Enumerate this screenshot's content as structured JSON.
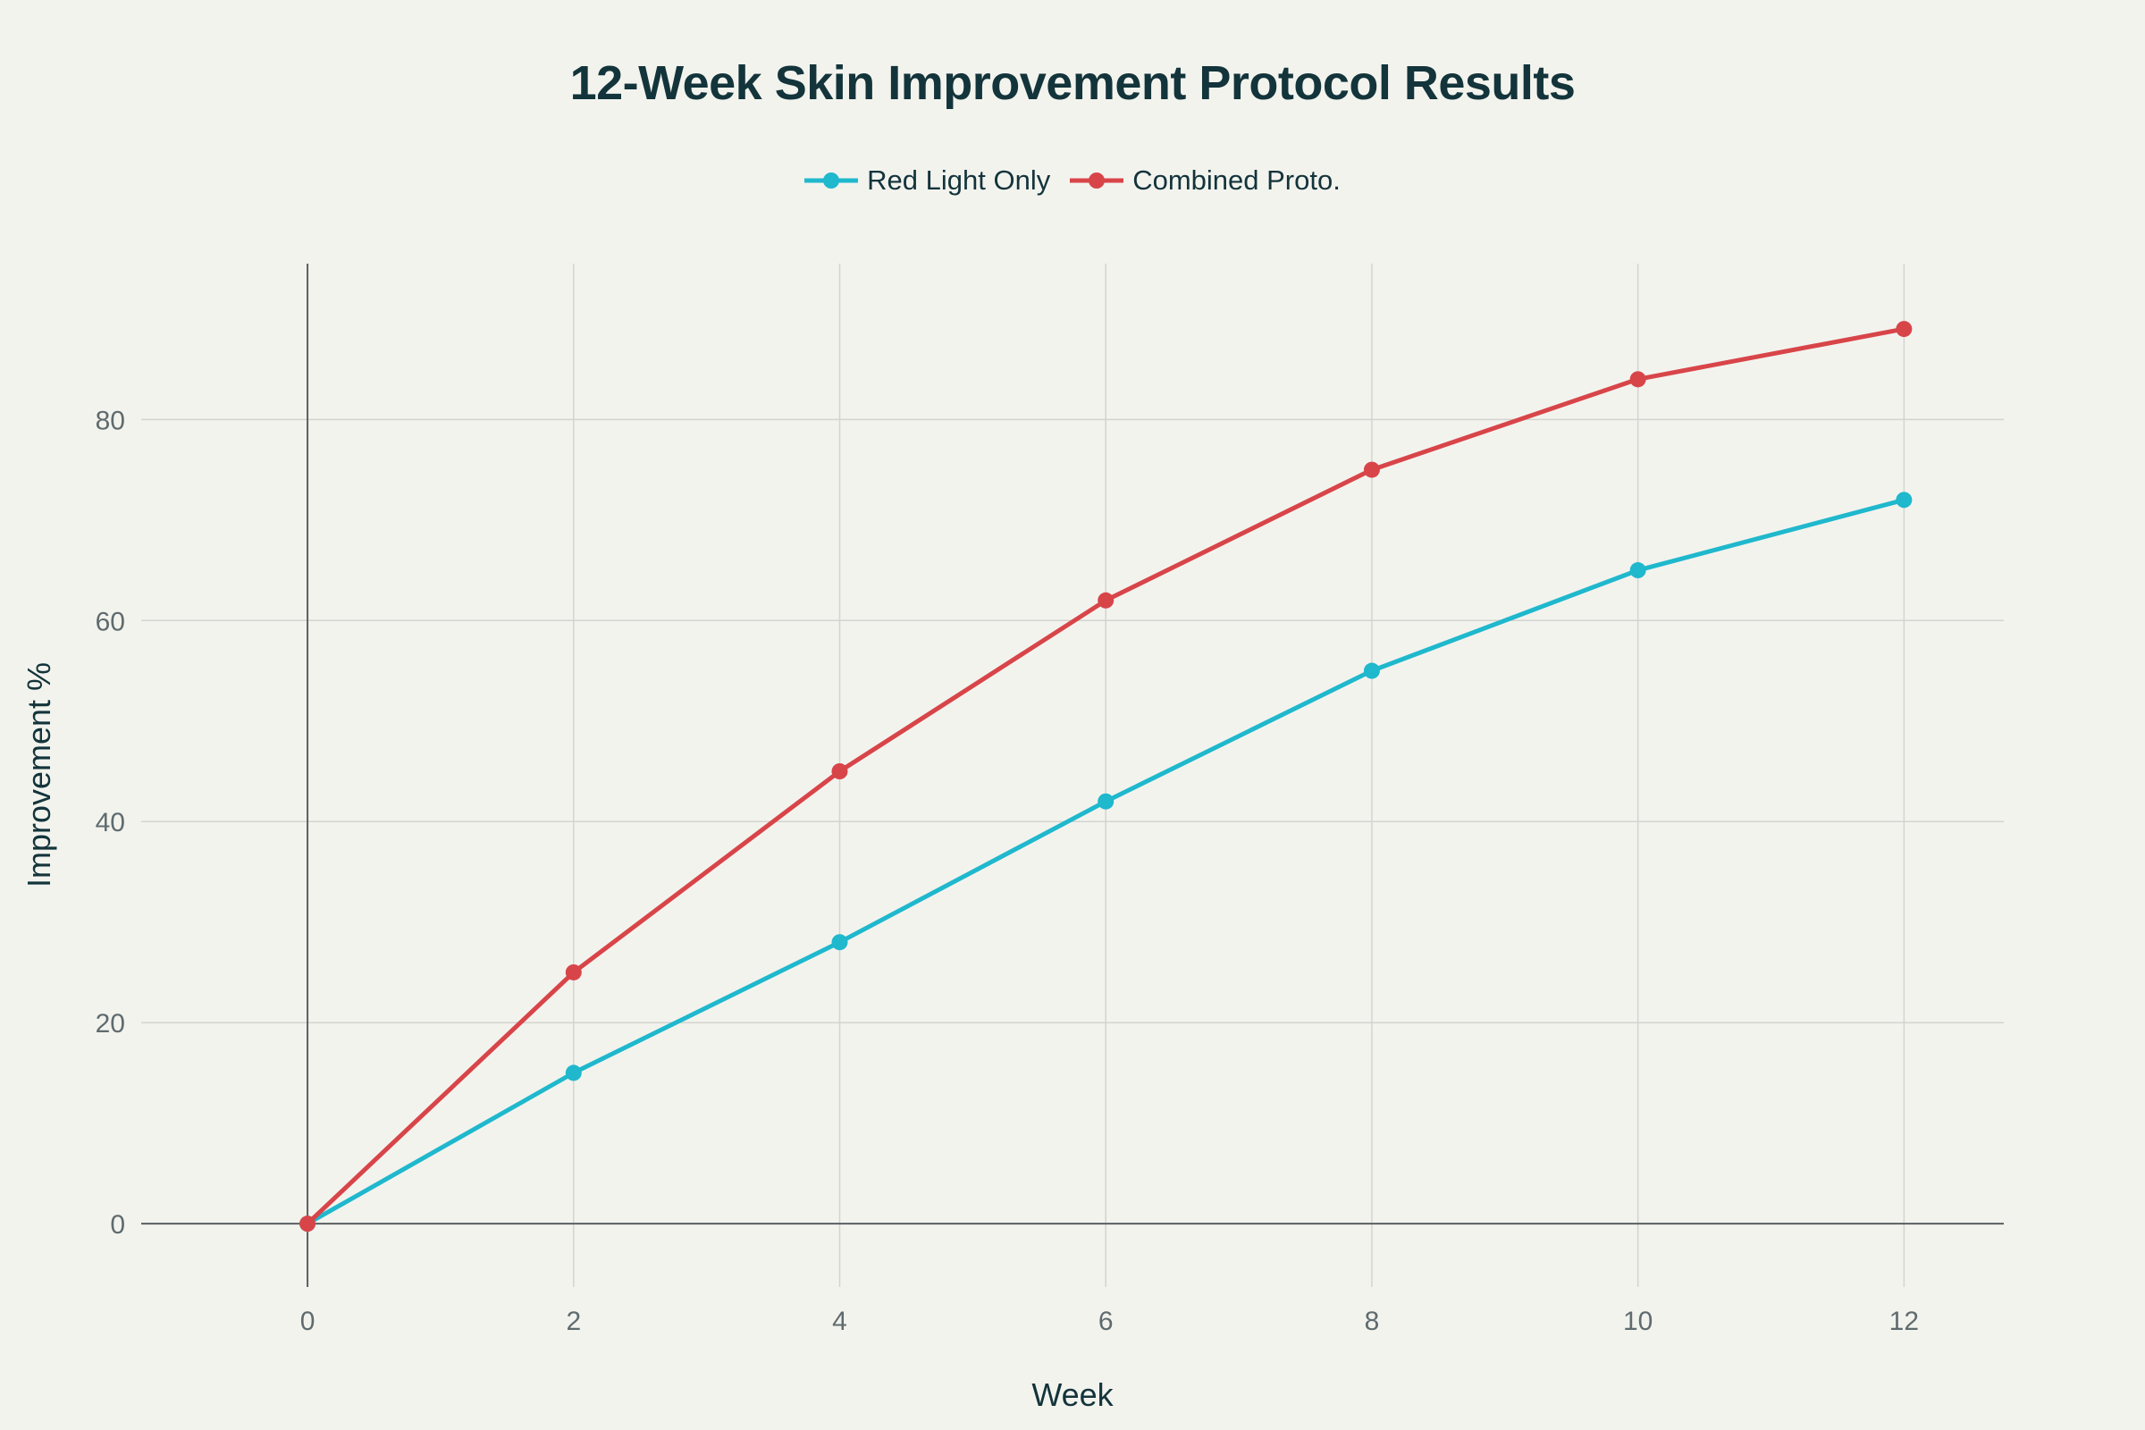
{
  "chart_data": {
    "type": "line",
    "title": "12-Week Skin Improvement Protocol Results",
    "xlabel": "Week",
    "ylabel": "Improvement %",
    "x": [
      0,
      2,
      4,
      6,
      8,
      10,
      12
    ],
    "xticks": [
      0,
      2,
      4,
      6,
      8,
      10,
      12
    ],
    "yticks": [
      0,
      20,
      40,
      60,
      80
    ],
    "xlim": [
      -1.25,
      12.75
    ],
    "ylim": [
      -6.3,
      95.5
    ],
    "grid": true,
    "legend_position": "top-center",
    "series": [
      {
        "name": "Red Light Only",
        "color": "#1fb8cd",
        "values": [
          0,
          15,
          28,
          42,
          55,
          65,
          72
        ]
      },
      {
        "name": "Combined Proto.",
        "color": "#d84549",
        "values": [
          0,
          25,
          45,
          62,
          75,
          84,
          89
        ]
      }
    ]
  }
}
